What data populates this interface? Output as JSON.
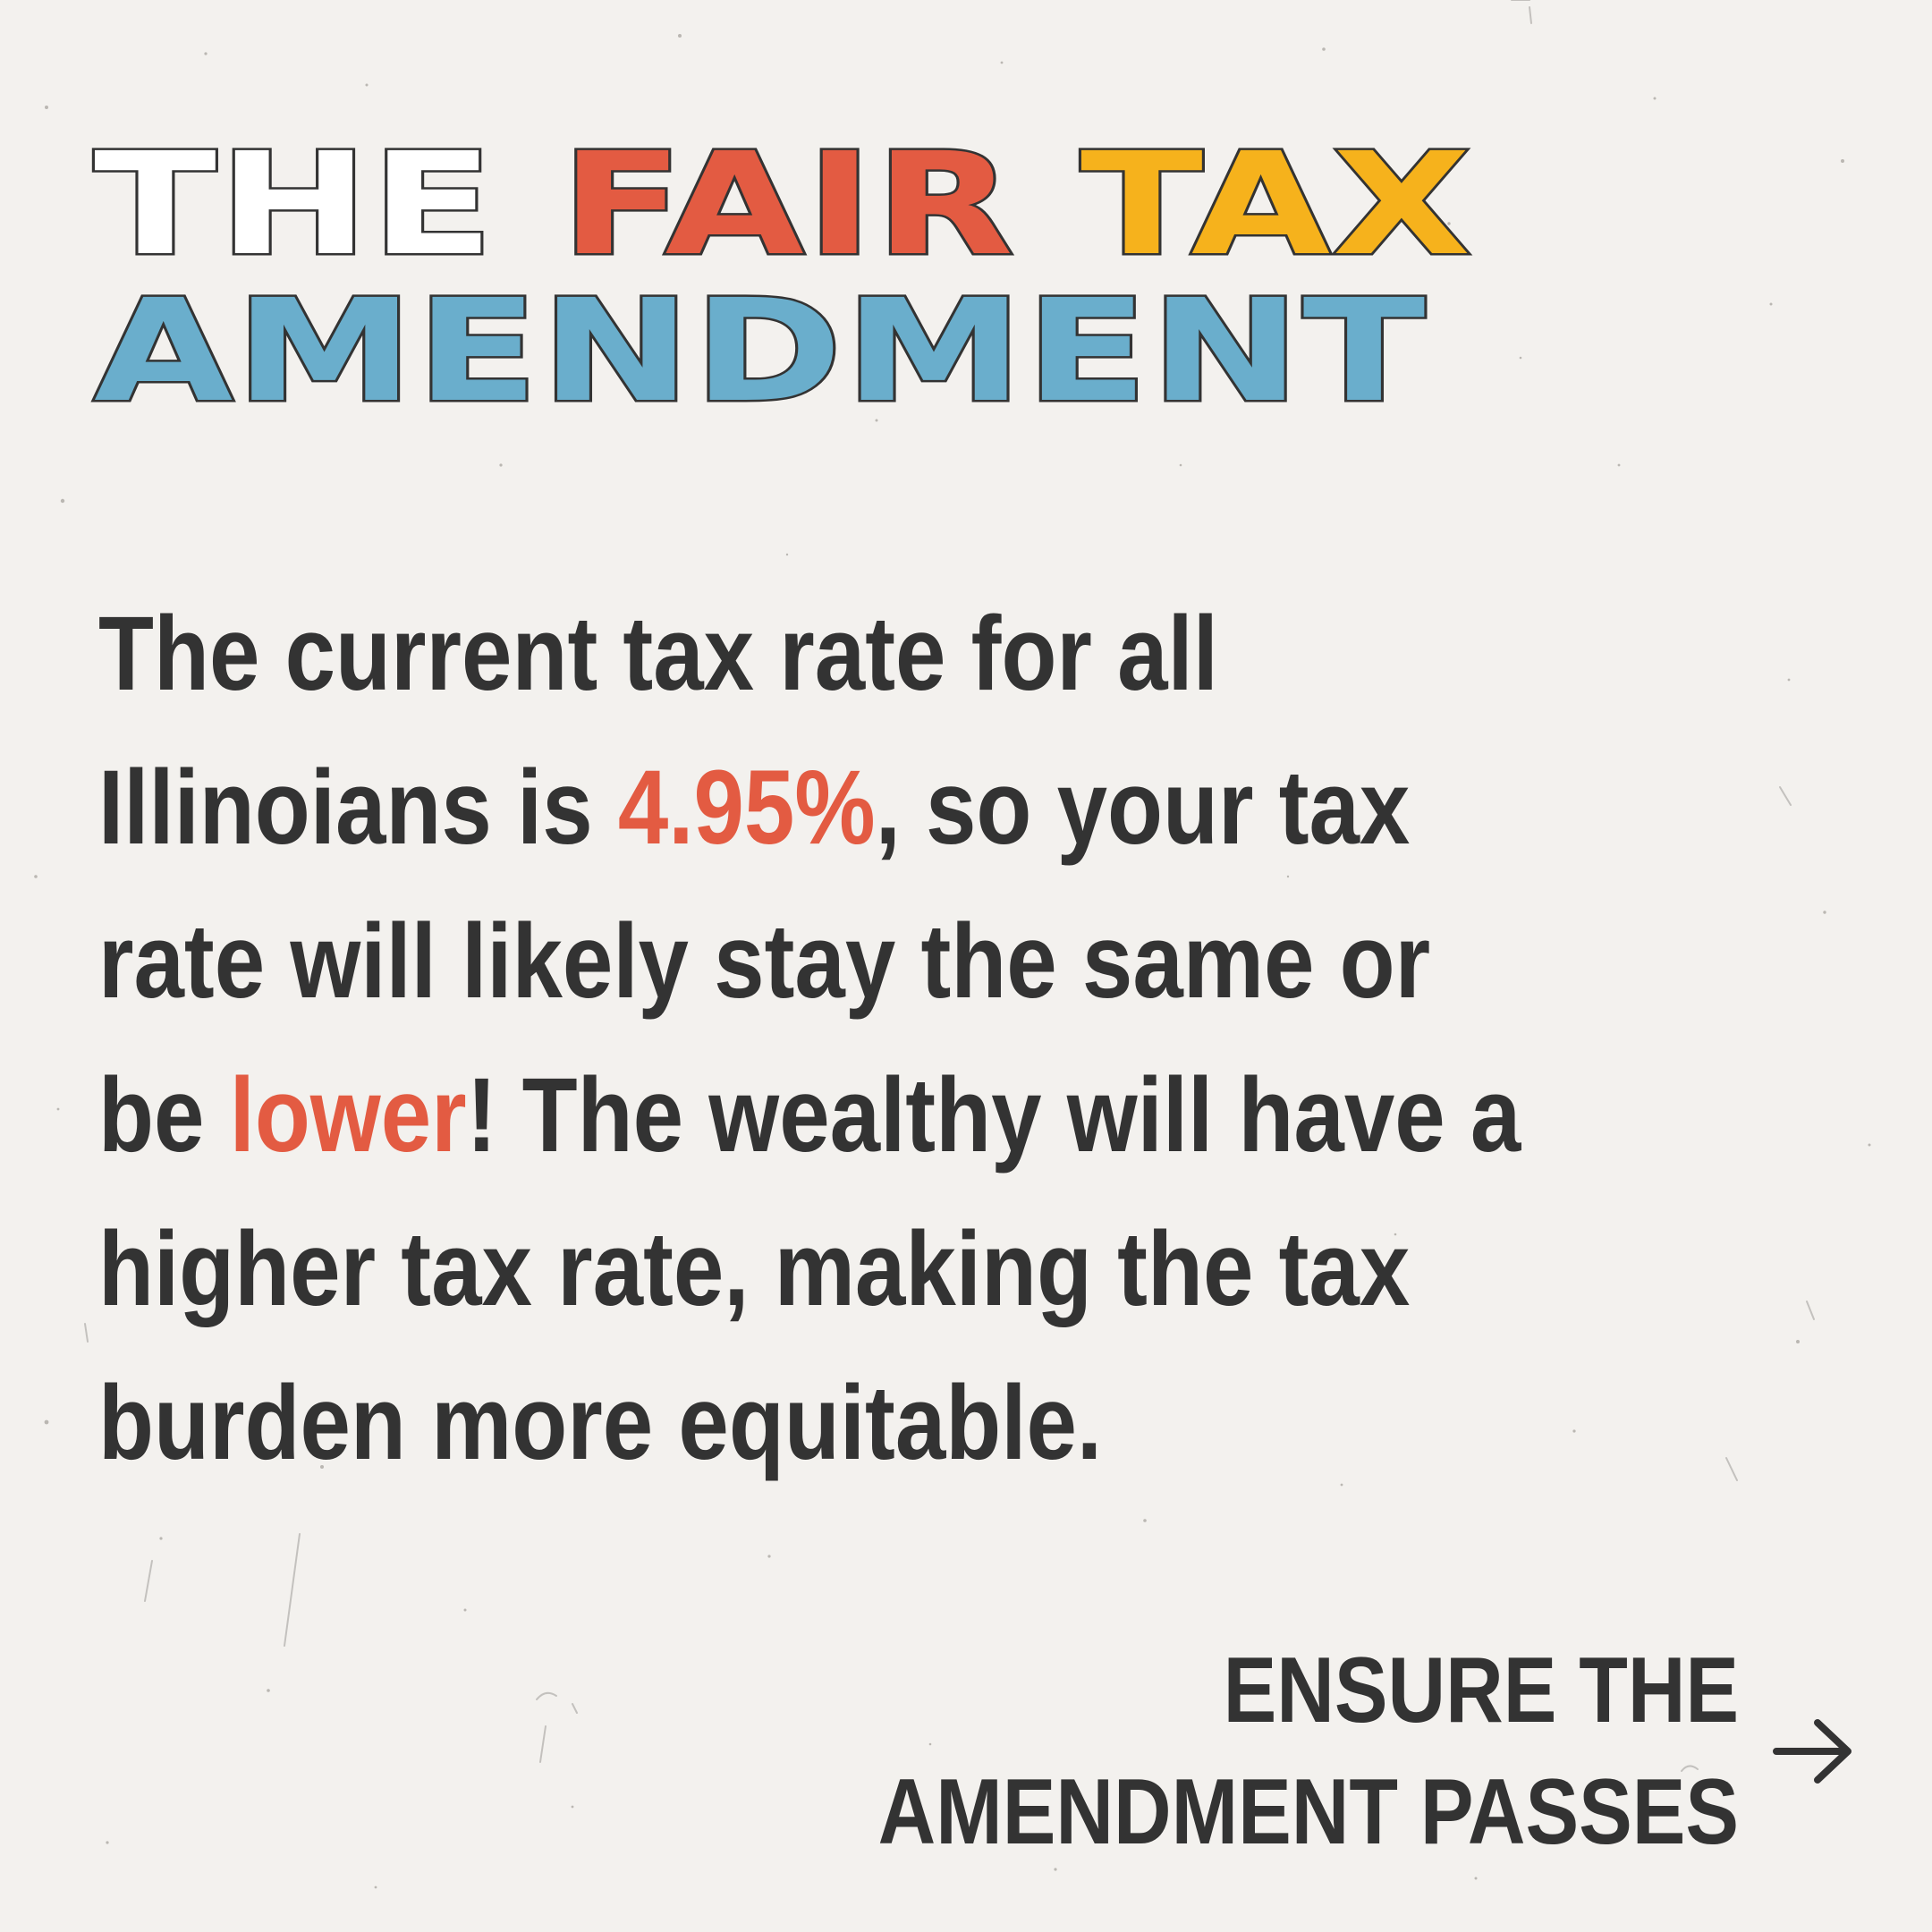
{
  "headline": {
    "line1": {
      "word1": "THE",
      "word2": "FAIR",
      "word3": "TAX"
    },
    "line2": "AMENDMENT"
  },
  "body": {
    "line1": "The current tax rate for all",
    "line2_a": "Illinoians is ",
    "line2_highlight": "4.95%",
    "line2_b": ", so your tax",
    "line3": "rate will likely stay the same or",
    "line4_a": "be ",
    "line4_highlight": "lower",
    "line4_b": "! The wealthy will have a",
    "line5": "higher tax rate, making the tax",
    "line6": "burden more equitable."
  },
  "cta": {
    "line1": "ENSURE THE",
    "line2": "AMENDMENT PASSES",
    "icon": "arrow-right-icon"
  },
  "colors": {
    "background": "#f3f1ee",
    "text": "#333333",
    "red": "#e35b42",
    "yellow": "#f6b21c",
    "blue": "#6aaecc",
    "white": "#ffffff"
  }
}
